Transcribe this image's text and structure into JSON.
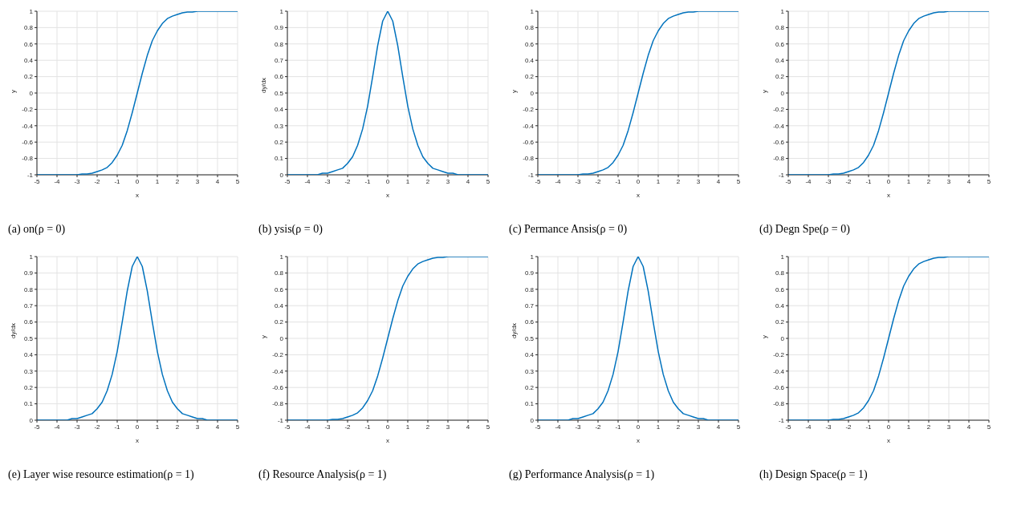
{
  "chart_data": [
    {
      "type": "line",
      "title": "(a) on(ρ = 0)",
      "xlabel": "x",
      "ylabel": "y",
      "x": [
        -5,
        -4.75,
        -4.5,
        -4.25,
        -4,
        -3.75,
        -3.5,
        -3.25,
        -3,
        -2.75,
        -2.5,
        -2.25,
        -2,
        -1.75,
        -1.5,
        -1.25,
        -1,
        -0.75,
        -0.5,
        -0.25,
        0,
        0.25,
        0.5,
        0.75,
        1,
        1.25,
        1.5,
        1.75,
        2,
        2.25,
        2.5,
        2.75,
        3,
        3.25,
        3.5,
        3.75,
        4,
        4.25,
        4.5,
        4.75,
        5
      ],
      "series": [
        {
          "color": "#0072bd",
          "values": [
            -1,
            -1,
            -1,
            -1,
            -1,
            -1,
            -1,
            -1,
            -1,
            -0.99,
            -0.99,
            -0.98,
            -0.96,
            -0.94,
            -0.91,
            -0.85,
            -0.76,
            -0.64,
            -0.46,
            -0.24,
            0,
            0.24,
            0.46,
            0.64,
            0.76,
            0.85,
            0.91,
            0.94,
            0.96,
            0.98,
            0.99,
            0.99,
            1,
            1,
            1,
            1,
            1,
            1,
            1,
            1,
            1
          ]
        }
      ],
      "xlim": [
        -5,
        5
      ],
      "xticks": [
        -5,
        -4,
        -3,
        -2,
        -1,
        0,
        1,
        2,
        3,
        4,
        5
      ],
      "ylim": [
        -1,
        1
      ],
      "yticks": [
        -1,
        -0.8,
        -0.6,
        -0.4,
        -0.2,
        0,
        0.2,
        0.4,
        0.6,
        0.8,
        1
      ],
      "grid": true,
      "legend": false,
      "marker": "none",
      "line_style": "solid"
    },
    {
      "type": "line",
      "title": "(b) ysis(ρ = 0)",
      "xlabel": "x",
      "ylabel": "dy/dx",
      "x": [
        -5,
        -4.75,
        -4.5,
        -4.25,
        -4,
        -3.75,
        -3.5,
        -3.25,
        -3,
        -2.75,
        -2.5,
        -2.25,
        -2,
        -1.75,
        -1.5,
        -1.25,
        -1,
        -0.75,
        -0.5,
        -0.25,
        0,
        0.25,
        0.5,
        0.75,
        1,
        1.25,
        1.5,
        1.75,
        2,
        2.25,
        2.5,
        2.75,
        3,
        3.25,
        3.5,
        3.75,
        4,
        4.25,
        4.5,
        4.75,
        5
      ],
      "series": [
        {
          "color": "#0072bd",
          "values": [
            0,
            0,
            0,
            0,
            0,
            0,
            0,
            0.01,
            0.01,
            0.02,
            0.03,
            0.04,
            0.07,
            0.11,
            0.18,
            0.28,
            0.42,
            0.6,
            0.79,
            0.94,
            1,
            0.94,
            0.79,
            0.6,
            0.42,
            0.28,
            0.18,
            0.11,
            0.07,
            0.04,
            0.03,
            0.02,
            0.01,
            0.01,
            0,
            0,
            0,
            0,
            0,
            0,
            0
          ]
        }
      ],
      "xlim": [
        -5,
        5
      ],
      "xticks": [
        -5,
        -4,
        -3,
        -2,
        -1,
        0,
        1,
        2,
        3,
        4,
        5
      ],
      "ylim": [
        0,
        1
      ],
      "yticks": [
        0,
        0.1,
        0.2,
        0.3,
        0.4,
        0.5,
        0.6,
        0.7,
        0.8,
        0.9,
        1
      ],
      "grid": true,
      "legend": false,
      "marker": "none",
      "line_style": "solid"
    },
    {
      "type": "line",
      "title": "(c) Permance Ansis(ρ = 0)",
      "xlabel": "x",
      "ylabel": "y",
      "x": [
        -5,
        -4.75,
        -4.5,
        -4.25,
        -4,
        -3.75,
        -3.5,
        -3.25,
        -3,
        -2.75,
        -2.5,
        -2.25,
        -2,
        -1.75,
        -1.5,
        -1.25,
        -1,
        -0.75,
        -0.5,
        -0.25,
        0,
        0.25,
        0.5,
        0.75,
        1,
        1.25,
        1.5,
        1.75,
        2,
        2.25,
        2.5,
        2.75,
        3,
        3.25,
        3.5,
        3.75,
        4,
        4.25,
        4.5,
        4.75,
        5
      ],
      "series": [
        {
          "color": "#0072bd",
          "values": [
            -1,
            -1,
            -1,
            -1,
            -1,
            -1,
            -1,
            -1,
            -1,
            -0.99,
            -0.99,
            -0.98,
            -0.96,
            -0.94,
            -0.91,
            -0.85,
            -0.76,
            -0.64,
            -0.46,
            -0.24,
            0,
            0.24,
            0.46,
            0.64,
            0.76,
            0.85,
            0.91,
            0.94,
            0.96,
            0.98,
            0.99,
            0.99,
            1,
            1,
            1,
            1,
            1,
            1,
            1,
            1,
            1
          ]
        }
      ],
      "xlim": [
        -5,
        5
      ],
      "xticks": [
        -5,
        -4,
        -3,
        -2,
        -1,
        0,
        1,
        2,
        3,
        4,
        5
      ],
      "ylim": [
        -1,
        1
      ],
      "yticks": [
        -1,
        -0.8,
        -0.6,
        -0.4,
        -0.2,
        0,
        0.2,
        0.4,
        0.6,
        0.8,
        1
      ],
      "grid": true,
      "legend": false,
      "marker": "none",
      "line_style": "solid"
    },
    {
      "type": "line",
      "title": "(d) Degn Spe(ρ = 0)",
      "xlabel": "x",
      "ylabel": "y",
      "x": [
        -5,
        -4.75,
        -4.5,
        -4.25,
        -4,
        -3.75,
        -3.5,
        -3.25,
        -3,
        -2.75,
        -2.5,
        -2.25,
        -2,
        -1.75,
        -1.5,
        -1.25,
        -1,
        -0.75,
        -0.5,
        -0.25,
        0,
        0.25,
        0.5,
        0.75,
        1,
        1.25,
        1.5,
        1.75,
        2,
        2.25,
        2.5,
        2.75,
        3,
        3.25,
        3.5,
        3.75,
        4,
        4.25,
        4.5,
        4.75,
        5
      ],
      "series": [
        {
          "color": "#0072bd",
          "values": [
            -1,
            -1,
            -1,
            -1,
            -1,
            -1,
            -1,
            -1,
            -1,
            -0.99,
            -0.99,
            -0.98,
            -0.96,
            -0.94,
            -0.91,
            -0.85,
            -0.76,
            -0.64,
            -0.46,
            -0.24,
            0,
            0.24,
            0.46,
            0.64,
            0.76,
            0.85,
            0.91,
            0.94,
            0.96,
            0.98,
            0.99,
            0.99,
            1,
            1,
            1,
            1,
            1,
            1,
            1,
            1,
            1
          ]
        }
      ],
      "xlim": [
        -5,
        5
      ],
      "xticks": [
        -5,
        -4,
        -3,
        -2,
        -1,
        0,
        1,
        2,
        3,
        4,
        5
      ],
      "ylim": [
        -1,
        1
      ],
      "yticks": [
        -1,
        -0.8,
        -0.6,
        -0.4,
        -0.2,
        0,
        0.2,
        0.4,
        0.6,
        0.8,
        1
      ],
      "grid": true,
      "legend": false,
      "marker": "none",
      "line_style": "solid"
    },
    {
      "type": "line",
      "title": "(e) Layer wise resource estimation(ρ = 1)",
      "xlabel": "x",
      "ylabel": "dy/dx",
      "x": [
        -5,
        -4.75,
        -4.5,
        -4.25,
        -4,
        -3.75,
        -3.5,
        -3.25,
        -3,
        -2.75,
        -2.5,
        -2.25,
        -2,
        -1.75,
        -1.5,
        -1.25,
        -1,
        -0.75,
        -0.5,
        -0.25,
        0,
        0.25,
        0.5,
        0.75,
        1,
        1.25,
        1.5,
        1.75,
        2,
        2.25,
        2.5,
        2.75,
        3,
        3.25,
        3.5,
        3.75,
        4,
        4.25,
        4.5,
        4.75,
        5
      ],
      "series": [
        {
          "color": "#0072bd",
          "values": [
            0,
            0,
            0,
            0,
            0,
            0,
            0,
            0.01,
            0.01,
            0.02,
            0.03,
            0.04,
            0.07,
            0.11,
            0.18,
            0.28,
            0.42,
            0.6,
            0.79,
            0.94,
            1,
            0.94,
            0.79,
            0.6,
            0.42,
            0.28,
            0.18,
            0.11,
            0.07,
            0.04,
            0.03,
            0.02,
            0.01,
            0.01,
            0,
            0,
            0,
            0,
            0,
            0,
            0
          ]
        }
      ],
      "xlim": [
        -5,
        5
      ],
      "xticks": [
        -5,
        -4,
        -3,
        -2,
        -1,
        0,
        1,
        2,
        3,
        4,
        5
      ],
      "ylim": [
        0,
        1
      ],
      "yticks": [
        0,
        0.1,
        0.2,
        0.3,
        0.4,
        0.5,
        0.6,
        0.7,
        0.8,
        0.9,
        1
      ],
      "grid": true,
      "legend": false,
      "marker": "none",
      "line_style": "solid"
    },
    {
      "type": "line",
      "title": "(f) Resource Analysis(ρ = 1)",
      "xlabel": "x",
      "ylabel": "y",
      "x": [
        -5,
        -4.75,
        -4.5,
        -4.25,
        -4,
        -3.75,
        -3.5,
        -3.25,
        -3,
        -2.75,
        -2.5,
        -2.25,
        -2,
        -1.75,
        -1.5,
        -1.25,
        -1,
        -0.75,
        -0.5,
        -0.25,
        0,
        0.25,
        0.5,
        0.75,
        1,
        1.25,
        1.5,
        1.75,
        2,
        2.25,
        2.5,
        2.75,
        3,
        3.25,
        3.5,
        3.75,
        4,
        4.25,
        4.5,
        4.75,
        5
      ],
      "series": [
        {
          "color": "#0072bd",
          "values": [
            -1,
            -1,
            -1,
            -1,
            -1,
            -1,
            -1,
            -1,
            -1,
            -0.99,
            -0.99,
            -0.98,
            -0.96,
            -0.94,
            -0.91,
            -0.85,
            -0.76,
            -0.64,
            -0.46,
            -0.24,
            0,
            0.24,
            0.46,
            0.64,
            0.76,
            0.85,
            0.91,
            0.94,
            0.96,
            0.98,
            0.99,
            0.99,
            1,
            1,
            1,
            1,
            1,
            1,
            1,
            1,
            1
          ]
        }
      ],
      "xlim": [
        -5,
        5
      ],
      "xticks": [
        -5,
        -4,
        -3,
        -2,
        -1,
        0,
        1,
        2,
        3,
        4,
        5
      ],
      "ylim": [
        -1,
        1
      ],
      "yticks": [
        -1,
        -0.8,
        -0.6,
        -0.4,
        -0.2,
        0,
        0.2,
        0.4,
        0.6,
        0.8,
        1
      ],
      "grid": true,
      "legend": false,
      "marker": "none",
      "line_style": "solid"
    },
    {
      "type": "line",
      "title": "(g) Performance Analysis(ρ = 1)",
      "xlabel": "x",
      "ylabel": "dy/dx",
      "x": [
        -5,
        -4.75,
        -4.5,
        -4.25,
        -4,
        -3.75,
        -3.5,
        -3.25,
        -3,
        -2.75,
        -2.5,
        -2.25,
        -2,
        -1.75,
        -1.5,
        -1.25,
        -1,
        -0.75,
        -0.5,
        -0.25,
        0,
        0.25,
        0.5,
        0.75,
        1,
        1.25,
        1.5,
        1.75,
        2,
        2.25,
        2.5,
        2.75,
        3,
        3.25,
        3.5,
        3.75,
        4,
        4.25,
        4.5,
        4.75,
        5
      ],
      "series": [
        {
          "color": "#0072bd",
          "values": [
            0,
            0,
            0,
            0,
            0,
            0,
            0,
            0.01,
            0.01,
            0.02,
            0.03,
            0.04,
            0.07,
            0.11,
            0.18,
            0.28,
            0.42,
            0.6,
            0.79,
            0.94,
            1,
            0.94,
            0.79,
            0.6,
            0.42,
            0.28,
            0.18,
            0.11,
            0.07,
            0.04,
            0.03,
            0.02,
            0.01,
            0.01,
            0,
            0,
            0,
            0,
            0,
            0,
            0
          ]
        }
      ],
      "xlim": [
        -5,
        5
      ],
      "xticks": [
        -5,
        -4,
        -3,
        -2,
        -1,
        0,
        1,
        2,
        3,
        4,
        5
      ],
      "ylim": [
        0,
        1
      ],
      "yticks": [
        0,
        0.1,
        0.2,
        0.3,
        0.4,
        0.5,
        0.6,
        0.7,
        0.8,
        0.9,
        1
      ],
      "grid": true,
      "legend": false,
      "marker": "none",
      "line_style": "solid"
    },
    {
      "type": "line",
      "title": "(h) Design Space(ρ = 1)",
      "xlabel": "x",
      "ylabel": "y",
      "x": [
        -5,
        -4.75,
        -4.5,
        -4.25,
        -4,
        -3.75,
        -3.5,
        -3.25,
        -3,
        -2.75,
        -2.5,
        -2.25,
        -2,
        -1.75,
        -1.5,
        -1.25,
        -1,
        -0.75,
        -0.5,
        -0.25,
        0,
        0.25,
        0.5,
        0.75,
        1,
        1.25,
        1.5,
        1.75,
        2,
        2.25,
        2.5,
        2.75,
        3,
        3.25,
        3.5,
        3.75,
        4,
        4.25,
        4.5,
        4.75,
        5
      ],
      "series": [
        {
          "color": "#0072bd",
          "values": [
            -1,
            -1,
            -1,
            -1,
            -1,
            -1,
            -1,
            -1,
            -1,
            -0.99,
            -0.99,
            -0.98,
            -0.96,
            -0.94,
            -0.91,
            -0.85,
            -0.76,
            -0.64,
            -0.46,
            -0.24,
            0,
            0.24,
            0.46,
            0.64,
            0.76,
            0.85,
            0.91,
            0.94,
            0.96,
            0.98,
            0.99,
            0.99,
            1,
            1,
            1,
            1,
            1,
            1,
            1,
            1,
            1
          ]
        }
      ],
      "xlim": [
        -5,
        5
      ],
      "xticks": [
        -5,
        -4,
        -3,
        -2,
        -1,
        0,
        1,
        2,
        3,
        4,
        5
      ],
      "ylim": [
        -1,
        1
      ],
      "yticks": [
        -1,
        -0.8,
        -0.6,
        -0.4,
        -0.2,
        0,
        0.2,
        0.4,
        0.6,
        0.8,
        1
      ],
      "grid": true,
      "legend": false,
      "marker": "none",
      "line_style": "solid"
    }
  ]
}
